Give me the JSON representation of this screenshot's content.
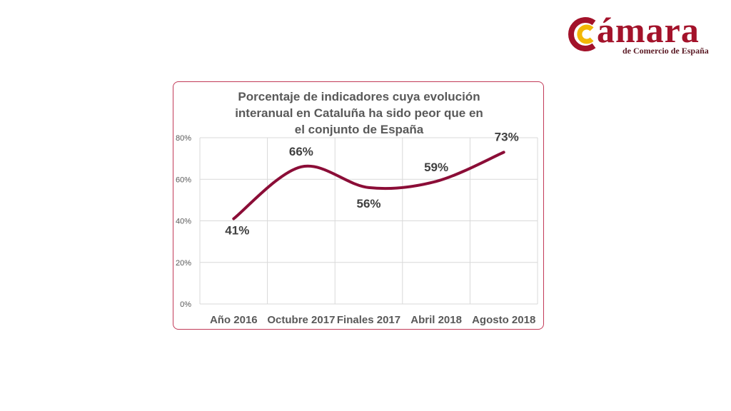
{
  "logo": {
    "wordmark": "ámara",
    "subtitle": "de Comercio de España",
    "colors": {
      "primary": "#a3122a",
      "accent": "#f2b705"
    }
  },
  "chart_data": {
    "type": "line",
    "title": "Porcentaje de indicadores cuya evolución interanual en Cataluña ha sido peor que en el conjunto de España",
    "title_lines": [
      "Porcentaje de indicadores cuya evolución",
      "interanual en Cataluña ha sido peor que en",
      "el conjunto de España"
    ],
    "categories": [
      "Año 2016",
      "Octubre 2017",
      "Finales 2017",
      "Abril 2018",
      "Agosto 2018"
    ],
    "series": [
      {
        "values": [
          41,
          66,
          56,
          59,
          73
        ],
        "labels": [
          "41%",
          "66%",
          "56%",
          "59%",
          "73%"
        ],
        "color": "#8b0d37"
      }
    ],
    "yticks": [
      "0%",
      "20%",
      "40%",
      "60%",
      "80%"
    ],
    "ylim": [
      0,
      80
    ],
    "grid": true,
    "smooth": true,
    "legend": "none"
  }
}
